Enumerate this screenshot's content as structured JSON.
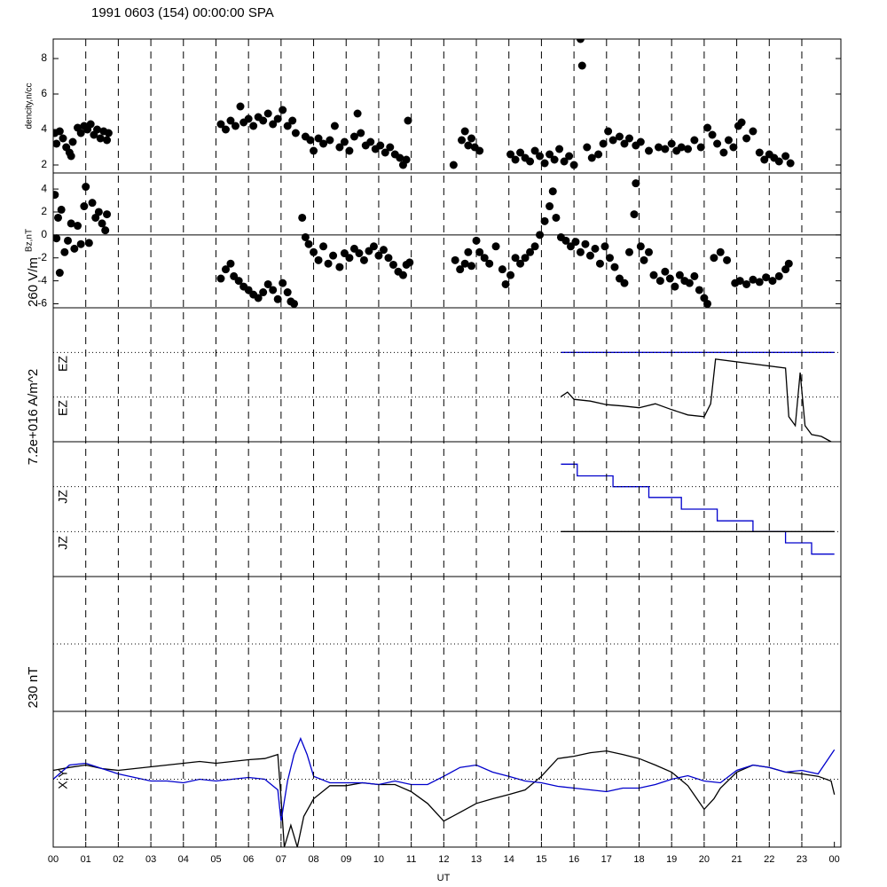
{
  "chart_data": [
    {
      "type": "scatter",
      "title": "1991 0603 (154) 00:00:00 SPA",
      "ylabel": "dencity,n/cc",
      "xlim": [
        0,
        24.2
      ],
      "ylim": [
        1.55,
        9.1
      ],
      "yticks": [
        2,
        4,
        6,
        8
      ],
      "series": [
        {
          "color": "#000000",
          "x": [
            0.05,
            0.1,
            0.2,
            0.3,
            0.4,
            0.5,
            0.55,
            0.6,
            0.75,
            0.85,
            0.95,
            1.05,
            1.15,
            1.25,
            1.35,
            1.45,
            1.55,
            1.65,
            1.7,
            5.15,
            5.3,
            5.45,
            5.6,
            5.75,
            5.85,
            6.0,
            6.15,
            6.3,
            6.45,
            6.6,
            6.75,
            6.9,
            7.05,
            7.2,
            7.35,
            7.45,
            7.75,
            7.9,
            8.0,
            8.15,
            8.3,
            8.5,
            8.65,
            8.8,
            8.95,
            9.1,
            9.25,
            9.35,
            9.45,
            9.6,
            9.75,
            9.9,
            10.05,
            10.2,
            10.35,
            10.5,
            10.65,
            10.75,
            10.85,
            10.9,
            12.3,
            12.55,
            12.65,
            12.75,
            12.85,
            12.95,
            13.1,
            14.05,
            14.2,
            14.35,
            14.5,
            14.65,
            14.8,
            14.95,
            15.1,
            15.25,
            15.4,
            15.55,
            15.7,
            15.85,
            16.0,
            16.2,
            16.25,
            16.4,
            16.55,
            16.75,
            16.9,
            17.05,
            17.2,
            17.4,
            17.55,
            17.7,
            17.9,
            18.05,
            18.3,
            18.6,
            18.8,
            19.0,
            19.15,
            19.3,
            19.5,
            19.7,
            19.9,
            20.1,
            20.25,
            20.4,
            20.6,
            20.75,
            20.9,
            21.05,
            21.15,
            21.3,
            21.5,
            21.7,
            21.85,
            22.0,
            22.15,
            22.3,
            22.5,
            22.65
          ],
          "values": [
            3.8,
            3.2,
            3.9,
            3.5,
            3.0,
            2.7,
            2.5,
            3.3,
            4.1,
            3.8,
            4.2,
            4.0,
            4.3,
            3.7,
            4.0,
            3.5,
            3.9,
            3.4,
            3.8,
            4.3,
            4.0,
            4.5,
            4.2,
            5.3,
            4.4,
            4.6,
            4.2,
            4.7,
            4.5,
            4.9,
            4.3,
            4.6,
            5.1,
            4.2,
            4.5,
            3.8,
            3.6,
            3.4,
            2.8,
            3.5,
            3.2,
            3.4,
            4.2,
            3.0,
            3.3,
            2.8,
            3.6,
            4.9,
            3.8,
            3.1,
            3.3,
            2.9,
            3.1,
            2.7,
            3.0,
            2.6,
            2.4,
            2.0,
            2.3,
            4.5,
            2.0,
            3.4,
            3.9,
            3.1,
            3.5,
            3.0,
            2.8,
            2.6,
            2.3,
            2.7,
            2.4,
            2.2,
            2.8,
            2.5,
            2.1,
            2.6,
            2.3,
            2.9,
            2.2,
            2.5,
            2.0,
            9.1,
            7.6,
            3.0,
            2.4,
            2.6,
            3.2,
            3.9,
            3.4,
            3.6,
            3.2,
            3.5,
            3.1,
            3.3,
            2.8,
            3.0,
            2.9,
            3.2,
            2.8,
            3.0,
            2.9,
            3.4,
            3.0,
            4.1,
            3.7,
            3.2,
            2.7,
            3.4,
            3.0,
            4.2,
            4.4,
            3.5,
            3.9,
            2.7,
            2.3,
            2.6,
            2.4,
            2.2,
            2.5,
            2.1
          ]
        }
      ]
    },
    {
      "type": "scatter",
      "ylabel": "Bz,nT",
      "scale_label": "260 V/m",
      "xlim": [
        0,
        24.2
      ],
      "ylim": [
        -6.35,
        5.4
      ],
      "yticks": [
        -6,
        -4,
        -2,
        0,
        2,
        4
      ],
      "hlines": [
        0
      ],
      "hline_style": "solid",
      "series": [
        {
          "color": "#000000",
          "x": [
            0.05,
            0.1,
            0.15,
            0.2,
            0.25,
            0.35,
            0.45,
            0.55,
            0.65,
            0.75,
            0.85,
            0.95,
            1.0,
            1.1,
            1.2,
            1.3,
            1.4,
            1.5,
            1.6,
            1.65,
            5.15,
            5.3,
            5.45,
            5.55,
            5.7,
            5.85,
            6.0,
            6.15,
            6.3,
            6.45,
            6.6,
            6.75,
            6.9,
            7.05,
            7.2,
            7.3,
            7.4,
            7.65,
            7.75,
            7.85,
            8.0,
            8.15,
            8.3,
            8.45,
            8.6,
            8.8,
            8.95,
            9.1,
            9.25,
            9.4,
            9.55,
            9.7,
            9.85,
            10.0,
            10.15,
            10.3,
            10.45,
            10.6,
            10.75,
            10.85,
            10.95,
            12.35,
            12.5,
            12.65,
            12.75,
            12.85,
            13.0,
            13.1,
            13.25,
            13.4,
            13.6,
            13.8,
            13.9,
            14.05,
            14.2,
            14.35,
            14.5,
            14.65,
            14.8,
            14.95,
            15.1,
            15.25,
            15.35,
            15.45,
            15.6,
            15.75,
            15.9,
            16.05,
            16.2,
            16.35,
            16.5,
            16.65,
            16.8,
            16.95,
            17.1,
            17.25,
            17.4,
            17.55,
            17.7,
            17.85,
            17.9,
            18.05,
            18.15,
            18.3,
            18.45,
            18.65,
            18.8,
            18.95,
            19.1,
            19.25,
            19.4,
            19.55,
            19.7,
            19.85,
            20.0,
            20.1,
            20.3,
            20.5,
            20.7,
            20.95,
            21.1,
            21.3,
            21.5,
            21.7,
            21.9,
            22.1,
            22.3,
            22.5,
            22.6
          ],
          "values": [
            3.5,
            -0.3,
            1.5,
            -3.3,
            2.2,
            -1.5,
            -0.5,
            1.0,
            -1.2,
            0.8,
            -0.8,
            2.5,
            4.2,
            -0.7,
            2.8,
            1.5,
            2.0,
            1.0,
            0.4,
            1.8,
            -3.8,
            -3.0,
            -2.5,
            -3.6,
            -4.0,
            -4.5,
            -4.8,
            -5.2,
            -5.5,
            -5.0,
            -4.3,
            -4.8,
            -5.6,
            -4.2,
            -5.0,
            -5.8,
            -6.0,
            1.5,
            -0.2,
            -0.8,
            -1.5,
            -2.2,
            -1.0,
            -2.5,
            -1.8,
            -2.8,
            -1.6,
            -2.0,
            -1.2,
            -1.6,
            -2.2,
            -1.4,
            -1.0,
            -1.8,
            -1.3,
            -2.0,
            -2.6,
            -3.2,
            -3.5,
            -2.6,
            -2.4,
            -2.2,
            -3.0,
            -2.5,
            -1.5,
            -2.7,
            -0.5,
            -1.5,
            -2.0,
            -2.5,
            -1.0,
            -3.0,
            -4.3,
            -3.5,
            -2.0,
            -2.5,
            -2.0,
            -1.5,
            -1.0,
            0.0,
            1.2,
            2.5,
            3.8,
            1.5,
            -0.2,
            -0.5,
            -1.0,
            -0.6,
            -1.5,
            -0.8,
            -1.8,
            -1.2,
            -2.5,
            -1.0,
            -2.0,
            -2.8,
            -3.8,
            -4.2,
            -1.5,
            1.8,
            4.5,
            -1.0,
            -2.2,
            -1.5,
            -3.5,
            -4.0,
            -3.2,
            -3.8,
            -4.5,
            -3.5,
            -4.0,
            -4.2,
            -3.6,
            -4.8,
            -5.5,
            -6.0,
            -2.0,
            -1.5,
            -2.2,
            -4.2,
            -4.0,
            -4.3,
            -3.9,
            -4.1,
            -3.7,
            -4.0,
            -3.6,
            -3.0,
            -2.5
          ]
        }
      ]
    },
    {
      "type": "line",
      "xlim": [
        0,
        24.2
      ],
      "ylim": [
        0,
        3
      ],
      "hlines": [
        1,
        2
      ],
      "hline_style": "dotted",
      "series": [
        {
          "name": "EZ",
          "color": "#0000cc",
          "x": [
            15.6,
            24
          ],
          "values": [
            2,
            2
          ]
        },
        {
          "name": "EZ",
          "color": "#000000",
          "x": [
            15.6,
            15.8,
            16,
            16.5,
            17,
            17.5,
            18,
            18.5,
            19,
            19.5,
            20,
            20.2,
            20.35,
            22.5,
            22.6,
            22.8,
            22.95,
            23.1,
            23.3,
            23.6,
            23.8,
            23.9
          ],
          "values": [
            1.01,
            1.11,
            0.95,
            0.91,
            0.83,
            0.8,
            0.76,
            0.85,
            0.72,
            0.6,
            0.56,
            0.85,
            1.85,
            1.65,
            0.56,
            0.36,
            1.55,
            0.36,
            0.16,
            0.12,
            0.04,
            0
          ]
        }
      ]
    },
    {
      "type": "line",
      "scale_label": "7.2e+016 A/m^2",
      "xlim": [
        0,
        24.2
      ],
      "ylim": [
        0,
        3
      ],
      "hlines": [
        1,
        2
      ],
      "hline_style": "dotted",
      "series": [
        {
          "name": "JZ",
          "color": "#0000cc",
          "x": [
            15.6,
            16.1,
            16.1,
            17.2,
            17.2,
            18.3,
            18.3,
            19.3,
            19.3,
            20.4,
            20.4,
            21.5,
            21.5,
            22.5,
            22.5,
            23.3,
            23.3,
            24
          ],
          "values": [
            2.5,
            2.5,
            2.24,
            2.24,
            2.0,
            2.0,
            1.76,
            1.76,
            1.5,
            1.5,
            1.24,
            1.24,
            1.0,
            1.0,
            0.75,
            0.75,
            0.5,
            0.5
          ]
        },
        {
          "name": "JZ",
          "color": "#000000",
          "x": [
            15.6,
            24
          ],
          "values": [
            1,
            1
          ]
        }
      ]
    },
    {
      "type": "line",
      "ylabel": "X,Y",
      "scale_label": "230 nT",
      "xlabel": "UT",
      "xlim": [
        0,
        24.2
      ],
      "ylim": [
        -115,
        115
      ],
      "hlines": [
        0
      ],
      "hline_style": "dotted",
      "xticks": [
        {
          "value": 0,
          "label": "00"
        },
        {
          "value": 1,
          "label": "01"
        },
        {
          "value": 2,
          "label": "02"
        },
        {
          "value": 3,
          "label": "03"
        },
        {
          "value": 4,
          "label": "04"
        },
        {
          "value": 5,
          "label": "05"
        },
        {
          "value": 6,
          "label": "06"
        },
        {
          "value": 7,
          "label": "07"
        },
        {
          "value": 8,
          "label": "08"
        },
        {
          "value": 9,
          "label": "09"
        },
        {
          "value": 10,
          "label": "10"
        },
        {
          "value": 11,
          "label": "11"
        },
        {
          "value": 12,
          "label": "12"
        },
        {
          "value": 13,
          "label": "13"
        },
        {
          "value": 14,
          "label": "14"
        },
        {
          "value": 15,
          "label": "15"
        },
        {
          "value": 16,
          "label": "16"
        },
        {
          "value": 17,
          "label": "17"
        },
        {
          "value": 18,
          "label": "18"
        },
        {
          "value": 19,
          "label": "19"
        },
        {
          "value": 20,
          "label": "20"
        },
        {
          "value": 21,
          "label": "21"
        },
        {
          "value": 22,
          "label": "22"
        },
        {
          "value": 23,
          "label": "23"
        },
        {
          "value": 24,
          "label": "00"
        }
      ],
      "series": [
        {
          "color": "#000000",
          "x": [
            0,
            0.5,
            1,
            1.5,
            2,
            2.5,
            3,
            3.5,
            4,
            4.5,
            5,
            5.5,
            6,
            6.5,
            6.9,
            7.0,
            7.1,
            7.3,
            7.5,
            7.7,
            8,
            8.5,
            9,
            9.5,
            10,
            10.5,
            11,
            11.5,
            12,
            12.5,
            13,
            13.5,
            14,
            14.5,
            15,
            15.5,
            16,
            16.5,
            17,
            17.5,
            18,
            18.5,
            19,
            19.5,
            20,
            20.3,
            20.5,
            21,
            21.5,
            22,
            22.5,
            23,
            23.5,
            23.9,
            24
          ],
          "values": [
            15,
            20,
            24,
            18,
            15,
            18,
            21,
            24,
            27,
            30,
            27,
            30,
            33,
            35,
            42,
            -33,
            -115,
            -78,
            -115,
            -63,
            -33,
            -11,
            -11,
            -6,
            -9,
            -9,
            -21,
            -41,
            -71,
            -56,
            -41,
            -33,
            -26,
            -18,
            5,
            35,
            39,
            45,
            48,
            42,
            35,
            24,
            12,
            -11,
            -51,
            -33,
            -15,
            12,
            24,
            20,
            12,
            9,
            5,
            -3,
            -26
          ]
        },
        {
          "color": "#0000cc",
          "x": [
            0,
            0.5,
            1,
            1.5,
            2,
            2.5,
            3,
            3.5,
            4,
            4.5,
            5,
            5.5,
            6,
            6.5,
            6.9,
            7.0,
            7.2,
            7.4,
            7.6,
            7.8,
            8,
            8.5,
            9,
            9.5,
            10,
            10.5,
            11,
            11.5,
            12,
            12.5,
            13,
            13.5,
            14,
            14.5,
            15,
            15.5,
            16,
            16.5,
            17,
            17.5,
            18,
            18.5,
            19,
            19.5,
            20,
            20.5,
            21,
            21.5,
            22,
            22.5,
            23,
            23.5,
            24
          ],
          "values": [
            0,
            24,
            27,
            18,
            9,
            3,
            -3,
            -3,
            -6,
            0,
            -3,
            0,
            3,
            0,
            -18,
            -71,
            -3,
            42,
            69,
            42,
            5,
            -6,
            -6,
            -6,
            -9,
            -3,
            -9,
            -9,
            5,
            20,
            24,
            12,
            5,
            -3,
            -6,
            -12,
            -15,
            -18,
            -21,
            -15,
            -15,
            -9,
            0,
            6,
            -3,
            -6,
            15,
            24,
            20,
            12,
            15,
            9,
            50
          ]
        }
      ]
    }
  ]
}
